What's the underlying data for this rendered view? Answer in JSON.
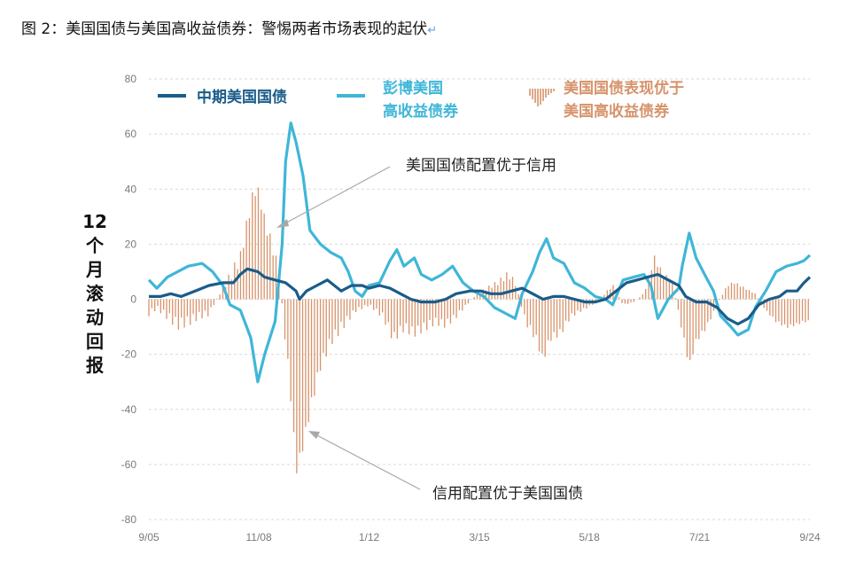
{
  "figure": {
    "title": "图 2：美国国债与美国高收益债券：警惕两者市场表现的起伏",
    "return_mark": "↵"
  },
  "colors": {
    "treasury": "#1a5c8a",
    "highyield": "#3fb6d8",
    "bars": "#d6936b",
    "grid": "#d9d9d9"
  },
  "chart_data": {
    "type": "line",
    "title": "",
    "xlabel": "",
    "ylabel": "12个月滚动回报",
    "ylim": [
      -80,
      80
    ],
    "yticks": [
      80,
      60,
      40,
      20,
      0,
      -20,
      -40,
      -60,
      -80
    ],
    "xlim": [
      2005.67,
      2024.67
    ],
    "xticks": [
      {
        "label": "9/05",
        "x": 2005.67
      },
      {
        "label": "11/08",
        "x": 2008.83
      },
      {
        "label": "1/12",
        "x": 2012.0
      },
      {
        "label": "3/15",
        "x": 2015.17
      },
      {
        "label": "5/18",
        "x": 2018.33
      },
      {
        "label": "7/21",
        "x": 2021.5
      },
      {
        "label": "9/24",
        "x": 2024.67
      }
    ],
    "legend_position": "top",
    "series": [
      {
        "name": "中期美国国债",
        "kind": "line",
        "points": [
          [
            2005.67,
            1
          ],
          [
            2006.0,
            1
          ],
          [
            2006.3,
            2
          ],
          [
            2006.6,
            1
          ],
          [
            2007.0,
            3
          ],
          [
            2007.4,
            5
          ],
          [
            2007.8,
            6
          ],
          [
            2008.1,
            6
          ],
          [
            2008.3,
            9
          ],
          [
            2008.5,
            11
          ],
          [
            2008.8,
            10
          ],
          [
            2009.0,
            8
          ],
          [
            2009.3,
            7
          ],
          [
            2009.6,
            6
          ],
          [
            2009.9,
            3
          ],
          [
            2010.0,
            0
          ],
          [
            2010.2,
            3
          ],
          [
            2010.5,
            5
          ],
          [
            2010.8,
            7
          ],
          [
            2011.0,
            5
          ],
          [
            2011.2,
            3
          ],
          [
            2011.5,
            5
          ],
          [
            2011.8,
            5
          ],
          [
            2012.0,
            4
          ],
          [
            2012.3,
            5
          ],
          [
            2012.6,
            4
          ],
          [
            2012.9,
            2
          ],
          [
            2013.2,
            0
          ],
          [
            2013.5,
            -1
          ],
          [
            2013.9,
            -1
          ],
          [
            2014.2,
            0
          ],
          [
            2014.5,
            2
          ],
          [
            2014.9,
            3
          ],
          [
            2015.2,
            3
          ],
          [
            2015.5,
            2
          ],
          [
            2015.8,
            2
          ],
          [
            2016.1,
            3
          ],
          [
            2016.4,
            4
          ],
          [
            2016.7,
            2
          ],
          [
            2017.0,
            0
          ],
          [
            2017.3,
            1
          ],
          [
            2017.6,
            1
          ],
          [
            2017.9,
            0
          ],
          [
            2018.2,
            -1
          ],
          [
            2018.5,
            -1
          ],
          [
            2018.8,
            0
          ],
          [
            2019.1,
            3
          ],
          [
            2019.4,
            6
          ],
          [
            2019.7,
            7
          ],
          [
            2020.0,
            8
          ],
          [
            2020.3,
            9
          ],
          [
            2020.6,
            7
          ],
          [
            2020.9,
            5
          ],
          [
            2021.1,
            1
          ],
          [
            2021.4,
            -1
          ],
          [
            2021.7,
            -1
          ],
          [
            2022.0,
            -3
          ],
          [
            2022.3,
            -7
          ],
          [
            2022.6,
            -9
          ],
          [
            2022.9,
            -7
          ],
          [
            2023.2,
            -2
          ],
          [
            2023.5,
            0
          ],
          [
            2023.8,
            1
          ],
          [
            2024.0,
            3
          ],
          [
            2024.3,
            3
          ],
          [
            2024.5,
            6
          ],
          [
            2024.67,
            8
          ]
        ]
      },
      {
        "name": "彭博美国高收益债券",
        "kind": "line",
        "points": [
          [
            2005.67,
            7
          ],
          [
            2005.9,
            4
          ],
          [
            2006.2,
            8
          ],
          [
            2006.5,
            10
          ],
          [
            2006.8,
            12
          ],
          [
            2007.2,
            13
          ],
          [
            2007.5,
            10
          ],
          [
            2007.8,
            5
          ],
          [
            2008.0,
            -2
          ],
          [
            2008.3,
            -4
          ],
          [
            2008.6,
            -14
          ],
          [
            2008.8,
            -30
          ],
          [
            2009.0,
            -20
          ],
          [
            2009.3,
            -8
          ],
          [
            2009.5,
            20
          ],
          [
            2009.6,
            50
          ],
          [
            2009.75,
            64
          ],
          [
            2009.9,
            57
          ],
          [
            2010.1,
            45
          ],
          [
            2010.3,
            25
          ],
          [
            2010.6,
            20
          ],
          [
            2010.9,
            17
          ],
          [
            2011.2,
            15
          ],
          [
            2011.4,
            10
          ],
          [
            2011.6,
            3
          ],
          [
            2011.8,
            1
          ],
          [
            2012.0,
            5
          ],
          [
            2012.3,
            6
          ],
          [
            2012.6,
            14
          ],
          [
            2012.8,
            18
          ],
          [
            2013.0,
            12
          ],
          [
            2013.3,
            15
          ],
          [
            2013.5,
            9
          ],
          [
            2013.8,
            7
          ],
          [
            2014.1,
            9
          ],
          [
            2014.4,
            12
          ],
          [
            2014.7,
            6
          ],
          [
            2015.0,
            3
          ],
          [
            2015.3,
            1
          ],
          [
            2015.6,
            -3
          ],
          [
            2015.9,
            -5
          ],
          [
            2016.2,
            -7
          ],
          [
            2016.4,
            2
          ],
          [
            2016.7,
            10
          ],
          [
            2016.9,
            17
          ],
          [
            2017.1,
            22
          ],
          [
            2017.3,
            15
          ],
          [
            2017.6,
            13
          ],
          [
            2017.9,
            6
          ],
          [
            2018.2,
            4
          ],
          [
            2018.5,
            1
          ],
          [
            2018.8,
            0
          ],
          [
            2019.0,
            -2
          ],
          [
            2019.3,
            7
          ],
          [
            2019.6,
            8
          ],
          [
            2019.9,
            9
          ],
          [
            2020.1,
            5
          ],
          [
            2020.3,
            -7
          ],
          [
            2020.6,
            0
          ],
          [
            2020.9,
            4
          ],
          [
            2021.0,
            12
          ],
          [
            2021.2,
            24
          ],
          [
            2021.4,
            15
          ],
          [
            2021.6,
            10
          ],
          [
            2021.9,
            3
          ],
          [
            2022.1,
            -6
          ],
          [
            2022.4,
            -10
          ],
          [
            2022.6,
            -13
          ],
          [
            2022.9,
            -11
          ],
          [
            2023.1,
            -3
          ],
          [
            2023.4,
            3
          ],
          [
            2023.7,
            10
          ],
          [
            2024.0,
            12
          ],
          [
            2024.3,
            13
          ],
          [
            2024.5,
            14
          ],
          [
            2024.67,
            16
          ]
        ]
      },
      {
        "name": "美国国债表现优于美国高收益债券",
        "kind": "bar",
        "points": [
          [
            2005.67,
            -5
          ],
          [
            2005.9,
            -3
          ],
          [
            2006.2,
            -6
          ],
          [
            2006.5,
            -9
          ],
          [
            2006.8,
            -8
          ],
          [
            2007.1,
            -6
          ],
          [
            2007.4,
            -5
          ],
          [
            2007.7,
            2
          ],
          [
            2008.0,
            8
          ],
          [
            2008.3,
            15
          ],
          [
            2008.5,
            28
          ],
          [
            2008.7,
            40
          ],
          [
            2008.85,
            38
          ],
          [
            2009.0,
            28
          ],
          [
            2009.2,
            20
          ],
          [
            2009.4,
            10
          ],
          [
            2009.6,
            -15
          ],
          [
            2009.75,
            -35
          ],
          [
            2009.9,
            -62
          ],
          [
            2010.0,
            -58
          ],
          [
            2010.15,
            -50
          ],
          [
            2010.3,
            -40
          ],
          [
            2010.6,
            -24
          ],
          [
            2010.9,
            -15
          ],
          [
            2011.2,
            -10
          ],
          [
            2011.6,
            -4
          ],
          [
            2012.0,
            -2
          ],
          [
            2012.4,
            -6
          ],
          [
            2012.7,
            -14
          ],
          [
            2013.0,
            -10
          ],
          [
            2013.3,
            -12
          ],
          [
            2013.6,
            -10
          ],
          [
            2013.9,
            -8
          ],
          [
            2014.2,
            -9
          ],
          [
            2014.5,
            -6
          ],
          [
            2014.8,
            -2
          ],
          [
            2015.1,
            2
          ],
          [
            2015.4,
            4
          ],
          [
            2015.7,
            6
          ],
          [
            2016.0,
            9
          ],
          [
            2016.2,
            6
          ],
          [
            2016.5,
            -8
          ],
          [
            2016.8,
            -14
          ],
          [
            2017.0,
            -22
          ],
          [
            2017.2,
            -14
          ],
          [
            2017.5,
            -12
          ],
          [
            2017.8,
            -6
          ],
          [
            2018.1,
            -4
          ],
          [
            2018.4,
            -2
          ],
          [
            2018.7,
            1
          ],
          [
            2019.0,
            5
          ],
          [
            2019.3,
            -2
          ],
          [
            2019.6,
            -1
          ],
          [
            2019.9,
            2
          ],
          [
            2020.2,
            15
          ],
          [
            2020.4,
            10
          ],
          [
            2020.7,
            6
          ],
          [
            2020.9,
            -5
          ],
          [
            2021.2,
            -24
          ],
          [
            2021.4,
            -15
          ],
          [
            2021.7,
            -10
          ],
          [
            2022.0,
            -2
          ],
          [
            2022.3,
            5
          ],
          [
            2022.5,
            6
          ],
          [
            2022.8,
            4
          ],
          [
            2023.1,
            2
          ],
          [
            2023.4,
            -4
          ],
          [
            2023.7,
            -8
          ],
          [
            2024.0,
            -10
          ],
          [
            2024.3,
            -9
          ],
          [
            2024.5,
            -8
          ],
          [
            2024.67,
            -8
          ]
        ]
      }
    ],
    "annotations": [
      {
        "text": "美国国债配置优于信用"
      },
      {
        "text": "信用配置优于美国国债"
      }
    ]
  }
}
